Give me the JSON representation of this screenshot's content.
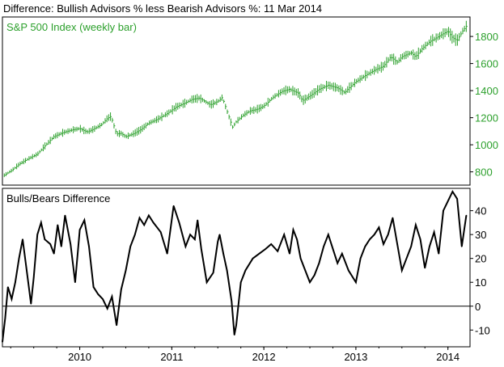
{
  "title": "Difference: Bullish Advisors % less Bearish Advisors %: 11 Mar 2014",
  "colors": {
    "price": "#2ca02c",
    "diff": "#000000",
    "axis": "#000000",
    "label_green": "#2ca02c",
    "grid": "#dddddd"
  },
  "chart_data": [
    {
      "type": "bar",
      "label": "S&P 500 Index (weekly bar)",
      "ylim": [
        720,
        1920
      ],
      "yticks": [
        800,
        1000,
        1200,
        1400,
        1600,
        1800
      ],
      "xlim": [
        2009.16,
        2014.24
      ],
      "series": [
        {
          "name": "S&P 500 Index (weekly bar)",
          "x": [
            2009.18,
            2009.26,
            2009.35,
            2009.45,
            2009.54,
            2009.62,
            2009.72,
            2009.82,
            2009.92,
            2010.0,
            2010.08,
            2010.15,
            2010.24,
            2010.3,
            2010.34,
            2010.4,
            2010.45,
            2010.5,
            2010.58,
            2010.66,
            2010.75,
            2010.85,
            2010.95,
            2011.05,
            2011.15,
            2011.22,
            2011.3,
            2011.35,
            2011.42,
            2011.5,
            2011.55,
            2011.58,
            2011.62,
            2011.66,
            2011.7,
            2011.78,
            2011.85,
            2011.92,
            2012.0,
            2012.1,
            2012.2,
            2012.28,
            2012.38,
            2012.42,
            2012.5,
            2012.6,
            2012.7,
            2012.8,
            2012.88,
            2012.92,
            2013.0,
            2013.1,
            2013.2,
            2013.3,
            2013.38,
            2013.45,
            2013.5,
            2013.6,
            2013.65,
            2013.72,
            2013.8,
            2013.9,
            2014.0,
            2014.05,
            2014.1,
            2014.16,
            2014.2
          ],
          "values": [
            775,
            810,
            860,
            900,
            930,
            990,
            1060,
            1090,
            1110,
            1120,
            1095,
            1115,
            1150,
            1195,
            1210,
            1080,
            1085,
            1060,
            1080,
            1110,
            1160,
            1190,
            1230,
            1280,
            1310,
            1335,
            1345,
            1325,
            1295,
            1320,
            1350,
            1290,
            1210,
            1130,
            1170,
            1220,
            1250,
            1260,
            1285,
            1350,
            1395,
            1410,
            1380,
            1325,
            1360,
            1410,
            1440,
            1420,
            1385,
            1415,
            1465,
            1510,
            1550,
            1580,
            1650,
            1610,
            1650,
            1680,
            1650,
            1710,
            1760,
            1800,
            1840,
            1790,
            1770,
            1840,
            1875
          ]
        }
      ]
    },
    {
      "type": "line",
      "label": "Bulls/Bears Difference",
      "ylim": [
        -16,
        48
      ],
      "yticks": [
        -10,
        0,
        10,
        20,
        30,
        40
      ],
      "xlim": [
        2009.16,
        2014.24
      ],
      "xticks": [
        "2010",
        "2011",
        "2012",
        "2013",
        "2014"
      ],
      "zero_line": true,
      "series": [
        {
          "name": "Bulls/Bears Difference",
          "x": [
            2009.16,
            2009.19,
            2009.22,
            2009.26,
            2009.3,
            2009.34,
            2009.38,
            2009.4,
            2009.44,
            2009.47,
            2009.5,
            2009.54,
            2009.58,
            2009.62,
            2009.68,
            2009.72,
            2009.76,
            2009.8,
            2009.84,
            2009.9,
            2009.95,
            2010.0,
            2010.05,
            2010.1,
            2010.15,
            2010.2,
            2010.25,
            2010.3,
            2010.35,
            2010.4,
            2010.45,
            2010.5,
            2010.55,
            2010.6,
            2010.65,
            2010.7,
            2010.75,
            2010.8,
            2010.88,
            2010.95,
            2011.02,
            2011.08,
            2011.15,
            2011.2,
            2011.25,
            2011.28,
            2011.32,
            2011.38,
            2011.45,
            2011.5,
            2011.52,
            2011.56,
            2011.6,
            2011.65,
            2011.68,
            2011.7,
            2011.75,
            2011.8,
            2011.88,
            2011.95,
            2012.02,
            2012.08,
            2012.15,
            2012.22,
            2012.28,
            2012.32,
            2012.36,
            2012.4,
            2012.45,
            2012.5,
            2012.55,
            2012.6,
            2012.65,
            2012.7,
            2012.75,
            2012.8,
            2012.85,
            2012.92,
            2013.0,
            2013.05,
            2013.1,
            2013.15,
            2013.2,
            2013.25,
            2013.3,
            2013.35,
            2013.4,
            2013.45,
            2013.5,
            2013.55,
            2013.6,
            2013.65,
            2013.7,
            2013.75,
            2013.8,
            2013.85,
            2013.9,
            2013.95,
            2014.0,
            2014.05,
            2014.1,
            2014.15,
            2014.2
          ],
          "values": [
            -15,
            -5,
            8,
            3,
            10,
            20,
            28,
            22,
            10,
            1,
            12,
            30,
            35,
            28,
            26,
            22,
            34,
            25,
            38,
            26,
            10,
            32,
            36,
            25,
            8,
            5,
            3,
            -1,
            4,
            -8,
            7,
            15,
            25,
            30,
            37,
            34,
            38,
            35,
            31,
            22,
            42,
            35,
            25,
            30,
            28,
            36,
            24,
            10,
            14,
            27,
            30,
            22,
            15,
            2,
            -12,
            -8,
            10,
            15,
            20,
            22,
            24,
            26,
            23,
            30,
            22,
            32,
            28,
            20,
            15,
            10,
            13,
            18,
            25,
            30,
            24,
            18,
            22,
            15,
            10,
            20,
            25,
            28,
            30,
            33,
            26,
            30,
            37,
            26,
            15,
            20,
            25,
            34,
            28,
            16,
            25,
            31,
            22,
            40,
            44,
            48,
            45,
            25,
            38
          ]
        }
      ]
    }
  ]
}
